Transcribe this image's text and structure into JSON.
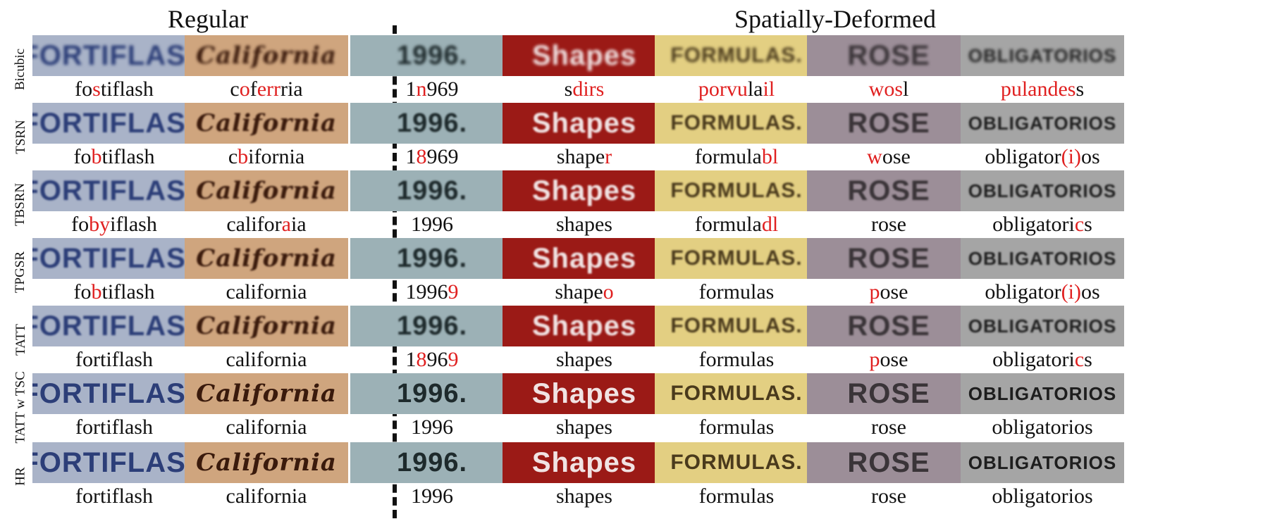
{
  "headers": {
    "regular": "Regular",
    "deformed": "Spatially-Deformed"
  },
  "columns": [
    {
      "hr_text": "FORTIFLASH",
      "bg": "#a9b3c8",
      "fg": "#2c3e78"
    },
    {
      "hr_text": "California",
      "bg": "#cfa57e",
      "fg": "#3a1a0c"
    },
    {
      "hr_text": "1996.",
      "bg": "#9cb1b6",
      "fg": "#1e2a2c"
    },
    {
      "hr_text": "Shapes",
      "bg": "#9b1a16",
      "fg": "#f1e3e3"
    },
    {
      "hr_text": "FORMULAS.",
      "bg": "#e3cf82",
      "fg": "#4a3a1c"
    },
    {
      "hr_text": "ROSE",
      "bg": "#9c8e98",
      "fg": "#3a3438"
    },
    {
      "hr_text": "OBLIGATORIOS",
      "bg": "#a5a5a5",
      "fg": "#1e1e1e"
    }
  ],
  "rows": [
    {
      "label": "Bicubic",
      "captions": [
        [
          [
            "fo",
            0
          ],
          [
            "s",
            1
          ],
          [
            "tiflash",
            0
          ]
        ],
        [
          [
            "c",
            0
          ],
          [
            "o",
            1
          ],
          [
            "f",
            0
          ],
          [
            "err",
            1
          ],
          [
            "ria",
            0
          ]
        ],
        [
          [
            "1",
            0
          ],
          [
            "n",
            1
          ],
          [
            "969",
            0
          ]
        ],
        [
          [
            "s",
            0
          ],
          [
            "dirs",
            1
          ]
        ],
        [
          [
            "porvu",
            1
          ],
          [
            "la",
            0
          ],
          [
            "il",
            1
          ]
        ],
        [
          [
            "wos",
            1
          ],
          [
            "l",
            0
          ]
        ],
        [
          [
            "pulandes",
            1
          ],
          [
            "s",
            0
          ]
        ]
      ]
    },
    {
      "label": "TSRN",
      "captions": [
        [
          [
            "fo",
            0
          ],
          [
            "b",
            1
          ],
          [
            "tiflash",
            0
          ]
        ],
        [
          [
            "c",
            0
          ],
          [
            "b",
            1
          ],
          [
            "ifornia",
            0
          ]
        ],
        [
          [
            "1",
            0
          ],
          [
            "8",
            1
          ],
          [
            "969",
            0
          ]
        ],
        [
          [
            "shape",
            0
          ],
          [
            "r",
            1
          ]
        ],
        [
          [
            "formula",
            0
          ],
          [
            "bl",
            1
          ]
        ],
        [
          [
            "w",
            1
          ],
          [
            "ose",
            0
          ]
        ],
        [
          [
            "obligator",
            0
          ],
          [
            "(i)",
            1
          ],
          [
            "os",
            0
          ]
        ]
      ]
    },
    {
      "label": "TBSRN",
      "captions": [
        [
          [
            "fo",
            0
          ],
          [
            "by",
            1
          ],
          [
            "iflash",
            0
          ]
        ],
        [
          [
            "califor",
            0
          ],
          [
            "a",
            1
          ],
          [
            "ia",
            0
          ]
        ],
        [
          [
            "1996",
            0
          ]
        ],
        [
          [
            "shapes",
            0
          ]
        ],
        [
          [
            "formula",
            0
          ],
          [
            "dl",
            1
          ]
        ],
        [
          [
            "rose",
            0
          ]
        ],
        [
          [
            "obligatori",
            0
          ],
          [
            "c",
            1
          ],
          [
            "s",
            0
          ]
        ]
      ]
    },
    {
      "label": "TPGSR",
      "captions": [
        [
          [
            "fo",
            0
          ],
          [
            "b",
            1
          ],
          [
            "tiflash",
            0
          ]
        ],
        [
          [
            "california",
            0
          ]
        ],
        [
          [
            "1996",
            0
          ],
          [
            "9",
            1
          ]
        ],
        [
          [
            "shape",
            0
          ],
          [
            "o",
            1
          ]
        ],
        [
          [
            "formulas",
            0
          ]
        ],
        [
          [
            "p",
            1
          ],
          [
            "ose",
            0
          ]
        ],
        [
          [
            "obligator",
            0
          ],
          [
            "(i)",
            1
          ],
          [
            "os",
            0
          ]
        ]
      ]
    },
    {
      "label": "TATT",
      "captions": [
        [
          [
            "fortiflash",
            0
          ]
        ],
        [
          [
            "california",
            0
          ]
        ],
        [
          [
            "1",
            0
          ],
          [
            "8",
            1
          ],
          [
            "96",
            0
          ],
          [
            "9",
            1
          ]
        ],
        [
          [
            "shapes",
            0
          ]
        ],
        [
          [
            "formulas",
            0
          ]
        ],
        [
          [
            "p",
            1
          ],
          [
            "ose",
            0
          ]
        ],
        [
          [
            "obligatori",
            0
          ],
          [
            "c",
            1
          ],
          [
            "s",
            0
          ]
        ]
      ]
    },
    {
      "label": "TATT w TSC",
      "captions": [
        [
          [
            "fortiflash",
            0
          ]
        ],
        [
          [
            "california",
            0
          ]
        ],
        [
          [
            "1996",
            0
          ]
        ],
        [
          [
            "shapes",
            0
          ]
        ],
        [
          [
            "formulas",
            0
          ]
        ],
        [
          [
            "rose",
            0
          ]
        ],
        [
          [
            "obligatorios",
            0
          ]
        ]
      ]
    },
    {
      "label": "HR",
      "captions": [
        [
          [
            "fortiflash",
            0
          ]
        ],
        [
          [
            "california",
            0
          ]
        ],
        [
          [
            "1996",
            0
          ]
        ],
        [
          [
            "shapes",
            0
          ]
        ],
        [
          [
            "formulas",
            0
          ]
        ],
        [
          [
            "rose",
            0
          ]
        ],
        [
          [
            "obligatorios",
            0
          ]
        ]
      ]
    }
  ]
}
